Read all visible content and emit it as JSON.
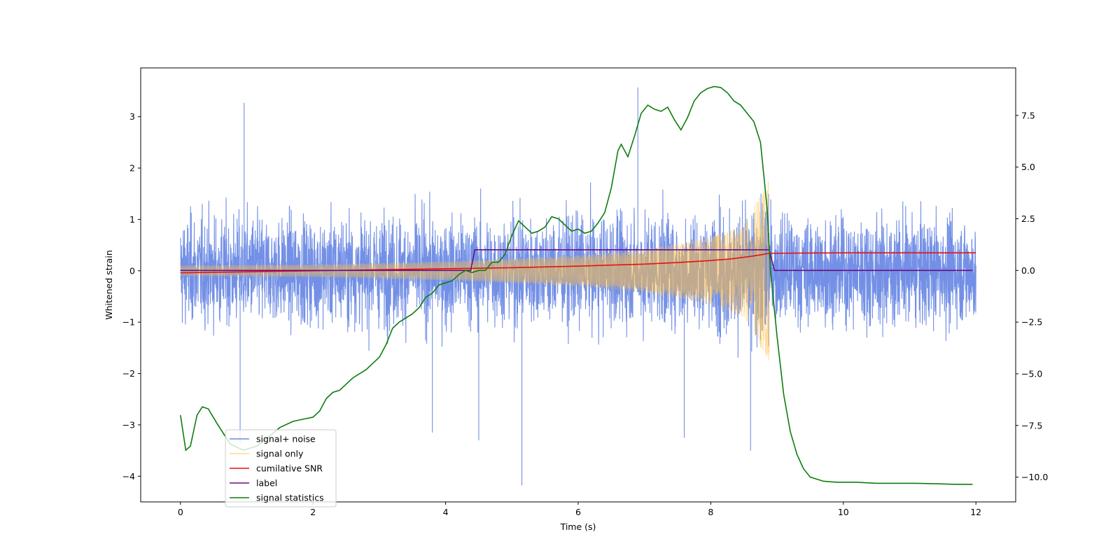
{
  "chart_data": {
    "type": "line",
    "xlabel": "Time (s)",
    "ylabel_left": "Whitened strain",
    "ylabel_right": "",
    "xlim": [
      -0.6,
      12.6
    ],
    "ylim_left": [
      -4.5,
      3.95
    ],
    "ylim_right": [
      -11.2,
      9.8
    ],
    "xticks": [
      0,
      2,
      4,
      6,
      8,
      10,
      12
    ],
    "yticks_left": [
      -4,
      -3,
      -2,
      -1,
      0,
      1,
      2,
      3
    ],
    "yticks_right": [
      -10.0,
      -7.5,
      -5.0,
      -2.5,
      0.0,
      2.5,
      5.0,
      7.5
    ],
    "grid": false,
    "legend_position": "lower-left",
    "series": [
      {
        "name": "signal+ noise",
        "axis": "left",
        "color": "#6b8ae5",
        "style": "dense noise band",
        "x_range": [
          0,
          12
        ],
        "typical_envelope": [
          -1.6,
          1.6
        ],
        "extremes": [
          {
            "x": 0.96,
            "y": 3.27
          },
          {
            "x": 6.9,
            "y": 3.57
          },
          {
            "x": 5.15,
            "y": -4.18
          },
          {
            "x": 4.5,
            "y": -3.3
          },
          {
            "x": 0.9,
            "y": -3.35
          },
          {
            "x": 3.8,
            "y": -3.15
          },
          {
            "x": 8.6,
            "y": -3.5
          },
          {
            "x": 7.6,
            "y": -3.25
          }
        ]
      },
      {
        "name": "signal only",
        "axis": "left",
        "color": "#ffbf47",
        "style": "chirp",
        "x_range": [
          0,
          8.88
        ],
        "amplitude": [
          {
            "x": 0,
            "y": 0.1
          },
          {
            "x": 2,
            "y": 0.12
          },
          {
            "x": 4,
            "y": 0.18
          },
          {
            "x": 6,
            "y": 0.3
          },
          {
            "x": 7,
            "y": 0.42
          },
          {
            "x": 8,
            "y": 0.65
          },
          {
            "x": 8.5,
            "y": 0.9
          },
          {
            "x": 8.8,
            "y": 1.6
          },
          {
            "x": 8.88,
            "y": 1.8
          }
        ]
      },
      {
        "name": "cumilative SNR",
        "axis": "left",
        "color": "#e81010",
        "x": [
          0,
          1,
          2,
          3,
          4,
          5,
          6,
          7,
          7.5,
          8,
          8.3,
          8.6,
          8.8,
          8.88,
          10,
          12
        ],
        "y": [
          -0.04,
          -0.02,
          0.0,
          0.02,
          0.04,
          0.06,
          0.09,
          0.13,
          0.16,
          0.2,
          0.23,
          0.28,
          0.32,
          0.34,
          0.35,
          0.35
        ]
      },
      {
        "name": "label",
        "axis": "right",
        "color": "#6a0d83",
        "x": [
          0,
          4.38,
          4.44,
          8.88,
          8.96,
          11.95
        ],
        "y": [
          0,
          0,
          1,
          1,
          0,
          0
        ]
      },
      {
        "name": "signal statistics",
        "axis": "right",
        "color": "#0e7d0e",
        "x": [
          0,
          0.08,
          0.15,
          0.25,
          0.33,
          0.42,
          0.55,
          0.75,
          0.95,
          1.15,
          1.35,
          1.5,
          1.7,
          1.85,
          2.0,
          2.1,
          2.2,
          2.3,
          2.4,
          2.6,
          2.8,
          2.9,
          3.0,
          3.1,
          3.2,
          3.3,
          3.5,
          3.6,
          3.7,
          3.8,
          3.9,
          4.0,
          4.1,
          4.2,
          4.3,
          4.4,
          4.5,
          4.6,
          4.7,
          4.8,
          4.9,
          5.0,
          5.1,
          5.2,
          5.3,
          5.4,
          5.5,
          5.6,
          5.7,
          5.8,
          5.9,
          6.0,
          6.1,
          6.2,
          6.3,
          6.4,
          6.5,
          6.6,
          6.65,
          6.75,
          6.85,
          6.95,
          7.05,
          7.15,
          7.25,
          7.35,
          7.45,
          7.55,
          7.65,
          7.75,
          7.85,
          7.95,
          8.05,
          8.15,
          8.25,
          8.35,
          8.45,
          8.55,
          8.65,
          8.75,
          8.85,
          8.9,
          9.0,
          9.1,
          9.2,
          9.3,
          9.4,
          9.5,
          9.7,
          9.9,
          10.2,
          10.5,
          10.8,
          11.1,
          11.4,
          11.7,
          11.95
        ],
        "y": [
          -7.0,
          -8.7,
          -8.5,
          -7.0,
          -6.6,
          -6.7,
          -7.4,
          -8.4,
          -8.7,
          -8.5,
          -8.0,
          -7.6,
          -7.3,
          -7.2,
          -7.1,
          -6.8,
          -6.2,
          -5.9,
          -5.8,
          -5.2,
          -4.8,
          -4.5,
          -4.2,
          -3.6,
          -2.8,
          -2.5,
          -2.1,
          -1.8,
          -1.3,
          -1.1,
          -0.7,
          -0.6,
          -0.5,
          -0.2,
          0.0,
          -0.1,
          0.0,
          0.0,
          0.4,
          0.4,
          0.8,
          1.7,
          2.4,
          2.1,
          1.8,
          1.9,
          2.1,
          2.6,
          2.5,
          2.2,
          1.9,
          2.0,
          1.8,
          1.9,
          2.3,
          2.8,
          4.0,
          5.8,
          6.1,
          5.5,
          6.5,
          7.6,
          8.0,
          7.8,
          7.7,
          7.9,
          7.3,
          6.8,
          7.4,
          8.2,
          8.6,
          8.8,
          8.9,
          8.85,
          8.6,
          8.2,
          8.0,
          7.6,
          7.2,
          6.2,
          3.0,
          0.0,
          -3.2,
          -6.0,
          -7.8,
          -8.9,
          -9.6,
          -10.0,
          -10.2,
          -10.25,
          -10.25,
          -10.3,
          -10.3,
          -10.3,
          -10.32,
          -10.35,
          -10.35
        ]
      }
    ]
  }
}
